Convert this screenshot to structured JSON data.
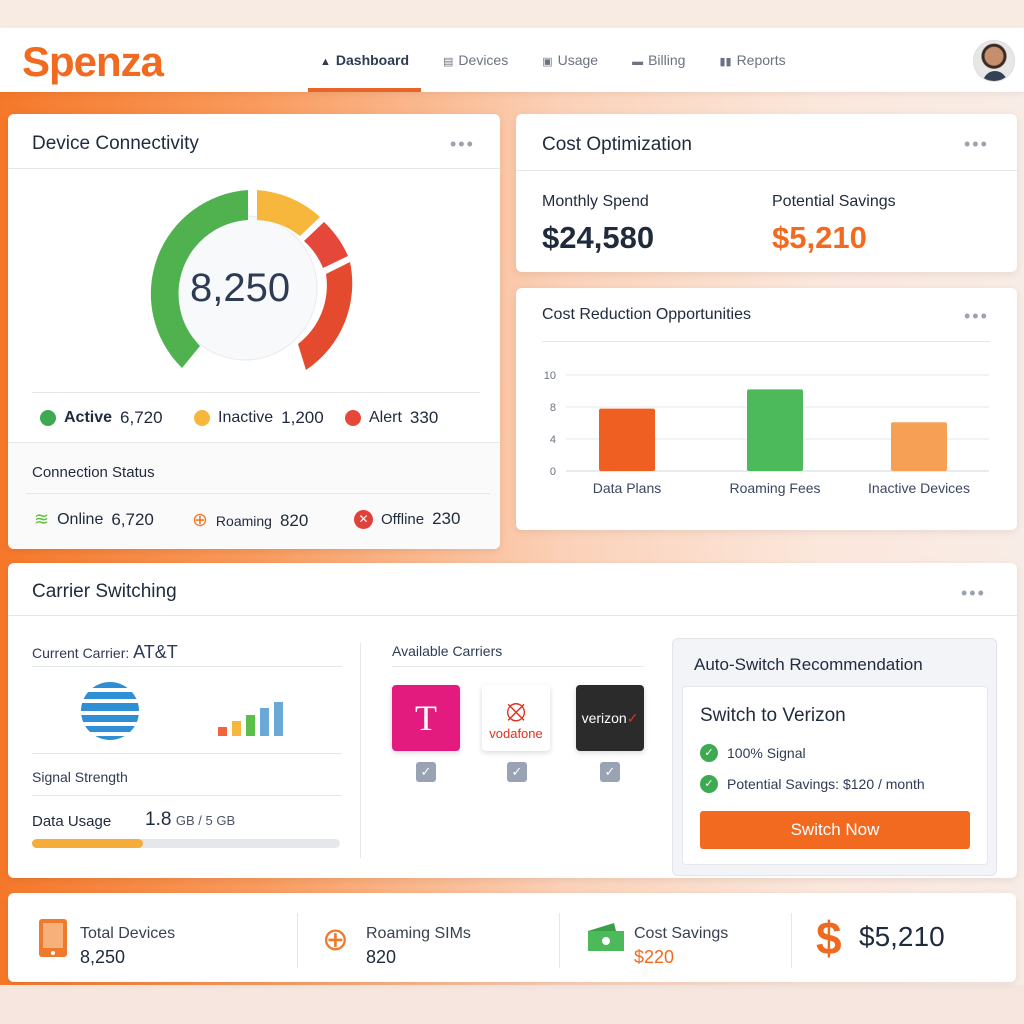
{
  "header": {
    "logo": "Spenza",
    "nav": [
      {
        "label": "Dashboard",
        "icon": "home-icon",
        "active": true
      },
      {
        "label": "Devices",
        "icon": "list-icon"
      },
      {
        "label": "Usage",
        "icon": "document-icon"
      },
      {
        "label": "Billing",
        "icon": "card-icon"
      },
      {
        "label": "Reports",
        "icon": "bar-chart-icon"
      }
    ]
  },
  "connectivity": {
    "title": "Device Connectivity",
    "total": "8,250",
    "legend": [
      {
        "label": "Active",
        "value": "6,720",
        "color": "#3daa52"
      },
      {
        "label": "Inactive",
        "value": "1,200",
        "color": "#f6b73c"
      },
      {
        "label": "Alert",
        "value": "330",
        "color": "#e5483b"
      }
    ],
    "status_title": "Connection Status",
    "status": [
      {
        "label": "Online",
        "value": "6,720",
        "icon": "wifi-icon"
      },
      {
        "label": "Roaming",
        "value": "820",
        "icon": "globe-icon"
      },
      {
        "label": "Offline",
        "value": "230",
        "icon": "x-circle-icon"
      }
    ]
  },
  "cost": {
    "title": "Cost Optimization",
    "monthly_label": "Monthly Spend",
    "monthly_value": "$24,580",
    "savings_label": "Potential Savings",
    "savings_value": "$5,210"
  },
  "chart_data": {
    "type": "bar",
    "title": "Cost Reduction Opportunities",
    "categories": [
      "Data Plans",
      "Roaming Fees",
      "Inactive Devices"
    ],
    "values": [
      7.8,
      9.1,
      6.1
    ],
    "yticks": [
      0,
      4,
      8,
      10
    ],
    "ylim": [
      0,
      10
    ],
    "grid": true,
    "colors": [
      "#ef5f22",
      "#4cb95a",
      "#f5a055"
    ]
  },
  "carrier": {
    "title": "Carrier Switching",
    "current_label": "Current Carrier:",
    "current_value": "AT&T",
    "signal_label": "Signal Strength",
    "usage_label": "Data Usage",
    "usage_value": "1.8",
    "usage_unit": "GB / 5 GB",
    "usage_fraction": 0.36,
    "available_title": "Available Carriers",
    "available": [
      {
        "name": "T",
        "color": "#e31b7f"
      },
      {
        "name": "vodafone",
        "color": "#ffffff"
      },
      {
        "name": "verizon",
        "color": "#2b2b2b"
      }
    ],
    "recommend": {
      "title": "Auto-Switch Recommendation",
      "heading": "Switch to Verizon",
      "items": [
        "100% Signal",
        "Potential Savings: $120 / month"
      ],
      "button": "Switch Now"
    }
  },
  "kpis": [
    {
      "label": "Total Devices",
      "value": "8,250",
      "icon": "tablet-icon"
    },
    {
      "label": "Roaming SIMs",
      "value": "820",
      "icon": "globe-icon"
    },
    {
      "label": "Cost Savings",
      "value": "$220",
      "icon": "money-icon"
    },
    {
      "label": "",
      "value": "$5,210",
      "icon": "dollar-icon"
    }
  ]
}
